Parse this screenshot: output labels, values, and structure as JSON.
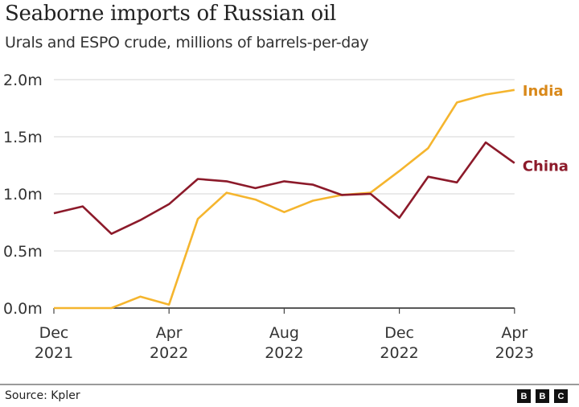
{
  "header": {
    "title": "Seaborne imports of Russian oil",
    "subtitle": "Urals and ESPO crude, millions of barrels-per-day"
  },
  "footer": {
    "source": "Source: Kpler",
    "logo": [
      "B",
      "B",
      "C"
    ]
  },
  "colors": {
    "india_line": "#f5b52e",
    "india_label": "#d9891a",
    "china_line": "#8c1a2a",
    "china_label": "#8c1a2a",
    "grid": "#dddddd",
    "axis": "#222222"
  },
  "chart_data": {
    "type": "line",
    "title": "Seaborne imports of Russian oil",
    "subtitle": "Urals and ESPO crude, millions of barrels-per-day",
    "xlabel": "",
    "ylabel": "",
    "x": [
      "Dec 2021",
      "Jan 2022",
      "Feb 2022",
      "Mar 2022",
      "Apr 2022",
      "May 2022",
      "Jun 2022",
      "Jul 2022",
      "Aug 2022",
      "Sep 2022",
      "Oct 2022",
      "Nov 2022",
      "Dec 2022",
      "Jan 2023",
      "Feb 2023",
      "Mar 2023",
      "Apr 2023"
    ],
    "x_ticks": [
      {
        "month": "Dec",
        "year": "2021",
        "index": 0
      },
      {
        "month": "Apr",
        "year": "2022",
        "index": 4
      },
      {
        "month": "Aug",
        "year": "2022",
        "index": 8
      },
      {
        "month": "Dec",
        "year": "2022",
        "index": 12
      },
      {
        "month": "Apr",
        "year": "2023",
        "index": 16
      }
    ],
    "y_ticks": [
      "0.0m",
      "0.5m",
      "1.0m",
      "1.5m",
      "2.0m"
    ],
    "y_tick_values": [
      0,
      0.5,
      1.0,
      1.5,
      2.0
    ],
    "ylim": [
      0,
      2.0
    ],
    "grid": true,
    "legend_position": "inline-right",
    "series": [
      {
        "name": "India",
        "values": [
          0.0,
          0.0,
          0.0,
          0.1,
          0.03,
          0.78,
          1.01,
          0.95,
          0.84,
          0.94,
          0.99,
          1.01,
          1.2,
          1.4,
          1.8,
          1.87,
          1.91
        ]
      },
      {
        "name": "China",
        "values": [
          0.83,
          0.89,
          0.65,
          0.77,
          0.91,
          1.13,
          1.11,
          1.05,
          1.11,
          1.08,
          0.99,
          1.0,
          0.79,
          1.15,
          1.1,
          1.45,
          1.27
        ]
      }
    ]
  }
}
